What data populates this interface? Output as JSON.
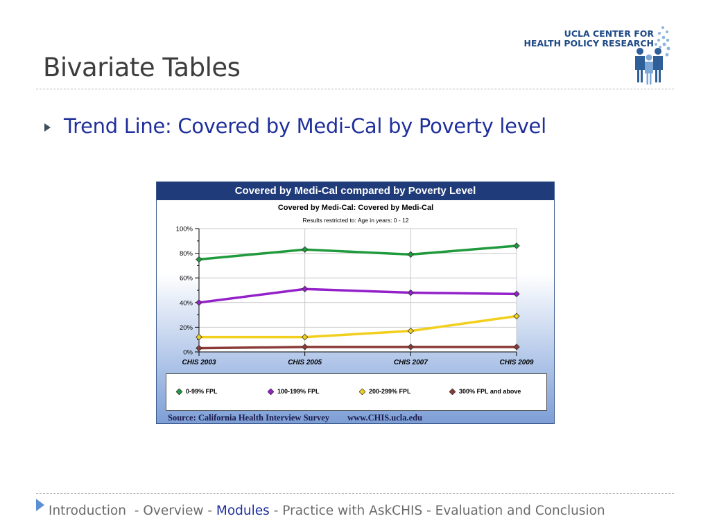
{
  "slide": {
    "title": "Bivariate Tables",
    "bullet": "Trend Line: Covered by Medi-Cal by Poverty level"
  },
  "logo": {
    "line1": "UCLA CENTER FOR",
    "line2": "HEALTH POLICY RESEARCH",
    "color": "#1f4a86"
  },
  "chart_data": {
    "type": "line",
    "banner": "Covered by Medi-Cal compared by Poverty Level",
    "title": "Covered by Medi-Cal: Covered by Medi-Cal",
    "subtitle": "Results restricted to: Age in years: 0 - 12",
    "categories": [
      "CHIS 2003",
      "CHIS 2005",
      "CHIS 2007",
      "CHIS 2009"
    ],
    "y_ticks": [
      "0%",
      "20%",
      "40%",
      "60%",
      "80%",
      "100%"
    ],
    "ylim": [
      0,
      100
    ],
    "grid": true,
    "legend_position": "bottom",
    "series": [
      {
        "name": "0-99% FPL",
        "color": "#1f9a3c",
        "values": [
          75,
          83,
          79,
          86
        ]
      },
      {
        "name": "100-199% FPL",
        "color": "#9320c8",
        "values": [
          40,
          51,
          48,
          47
        ]
      },
      {
        "name": "200-299% FPL",
        "color": "#f2cf1c",
        "values": [
          12,
          12,
          17,
          29
        ]
      },
      {
        "name": "300% FPL and above",
        "color": "#8b3a36",
        "values": [
          3,
          4,
          4,
          4
        ]
      }
    ],
    "source": "Source: California Health Interview Survey",
    "url": "www.CHIS.ucla.edu"
  },
  "footer": {
    "items": [
      {
        "label": "Introduction",
        "active": false
      },
      {
        "label": "Overview",
        "active": false
      },
      {
        "label": "Modules",
        "active": true
      },
      {
        "label": "Practice with AskCHIS",
        "active": false
      },
      {
        "label": "Evaluation and Conclusion",
        "active": false
      }
    ],
    "active_color": "#1f2f9b",
    "inactive_color": "#6b6b6b"
  }
}
